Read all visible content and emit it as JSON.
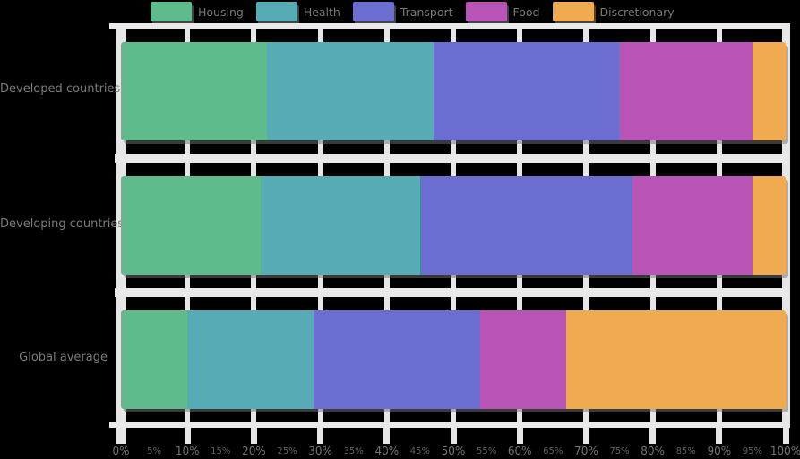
{
  "page": {
    "background_color": "#000000",
    "gridline_color": "#e8e8e8",
    "text_color": "#7a7a7a"
  },
  "legend": {
    "position": "top",
    "items": [
      {
        "label": "Housing",
        "color": "#5FBA8C",
        "swatch": "green-swatch"
      },
      {
        "label": "Health",
        "color": "#57ABB4",
        "swatch": "teal-swatch"
      },
      {
        "label": "Transport",
        "color": "#6B6ED0",
        "swatch": "purple-swatch"
      },
      {
        "label": "Food",
        "color": "#B854B6",
        "swatch": "magenta-swatch"
      },
      {
        "label": "Discretionary",
        "color": "#F0AB51",
        "swatch": "orange-swatch"
      }
    ]
  },
  "chart_data": {
    "type": "bar",
    "orientation": "horizontal",
    "stacked": true,
    "normalized_percent": true,
    "title": "",
    "xlabel": "",
    "ylabel": "",
    "categories": [
      "Developed countries",
      "Developing countries",
      "Global average"
    ],
    "series": [
      {
        "name": "Housing",
        "color": "#5FBA8C",
        "values": [
          22,
          21,
          10
        ]
      },
      {
        "name": "Health",
        "color": "#57ABB4",
        "values": [
          25,
          24,
          19
        ]
      },
      {
        "name": "Transport",
        "color": "#6B6ED0",
        "values": [
          28,
          32,
          25
        ]
      },
      {
        "name": "Food",
        "color": "#B854B6",
        "values": [
          20,
          18,
          13
        ]
      },
      {
        "name": "Discretionary",
        "color": "#F0AB51",
        "values": [
          5,
          5,
          33
        ]
      }
    ],
    "xlim": [
      0,
      100
    ],
    "x_major_ticks": [
      "0%",
      "10%",
      "20%",
      "30%",
      "40%",
      "50%",
      "60%",
      "70%",
      "80%",
      "90%",
      "100%"
    ],
    "x_minor_ticks": [
      "5%",
      "15%",
      "25%",
      "35%",
      "45%",
      "55%",
      "65%",
      "75%",
      "85%",
      "95%"
    ],
    "grid": "white vertical gridlines at every 10%, white horizontal separators between bars",
    "legend_position": "top"
  }
}
